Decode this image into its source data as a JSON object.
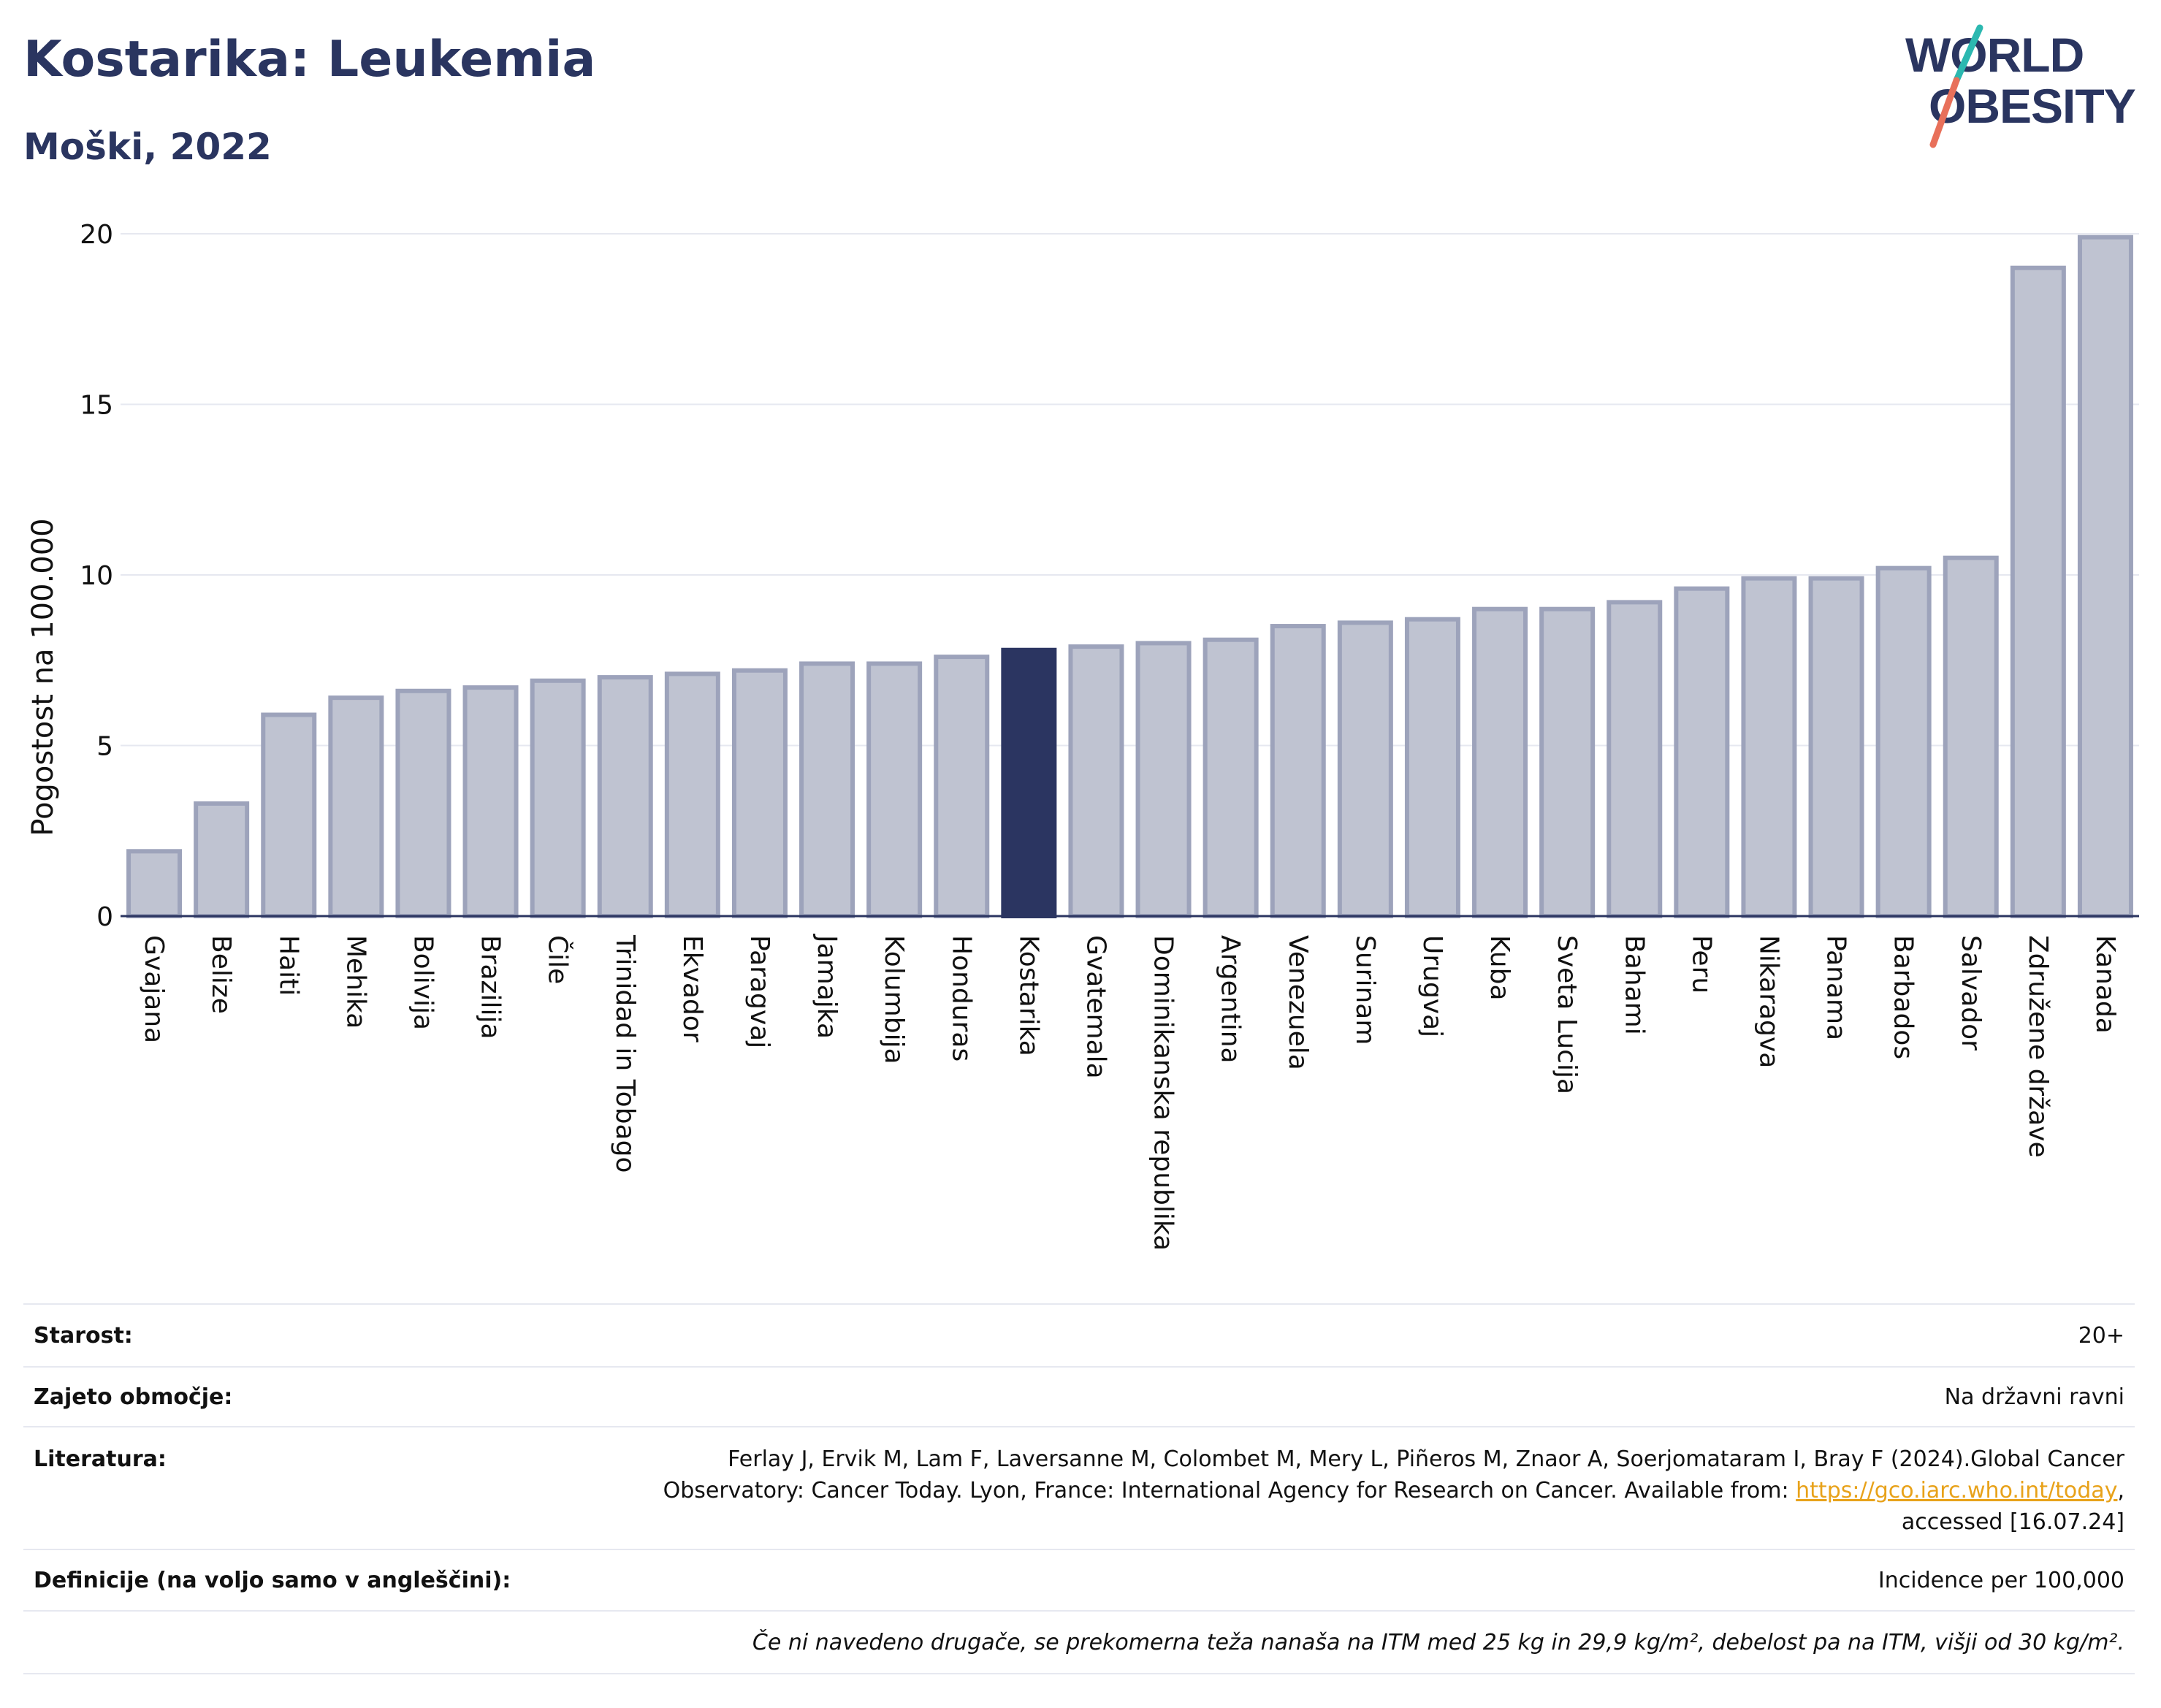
{
  "header": {
    "title": "Kostarika: Leukemia",
    "subtitle": "Moški, 2022"
  },
  "logo": {
    "line1": "WORLD",
    "line2": "OBESITY"
  },
  "chart_data": {
    "type": "bar",
    "title": "Kostarika: Leukemia",
    "subtitle": "Moški, 2022",
    "ylabel": "Pogostost na 100.000",
    "ylim": [
      0,
      20
    ],
    "yticks": [
      0,
      5,
      10,
      15,
      20
    ],
    "grid": true,
    "highlight": "Kostarika",
    "colors": {
      "bar": "#bfc3d1",
      "bar_edge": "#9da3bb",
      "highlight": "#2b3561",
      "axis": "#2b3561",
      "grid": "#e6e8f0"
    },
    "categories": [
      "Gvajana",
      "Belize",
      "Haiti",
      "Mehika",
      "Bolivija",
      "Brazilija",
      "Čile",
      "Trinidad in Tobago",
      "Ekvador",
      "Paragvaj",
      "Jamajka",
      "Kolumbija",
      "Honduras",
      "Kostarika",
      "Gvatemala",
      "Dominikanska republika",
      "Argentina",
      "Venezuela",
      "Surinam",
      "Urugvaj",
      "Kuba",
      "Sveta Lucija",
      "Bahami",
      "Peru",
      "Nikaragva",
      "Panama",
      "Barbados",
      "Salvador",
      "Združene države",
      "Kanada"
    ],
    "values": [
      1.9,
      3.3,
      5.9,
      6.4,
      6.6,
      6.7,
      6.9,
      7.0,
      7.1,
      7.2,
      7.4,
      7.4,
      7.6,
      7.8,
      7.9,
      8.0,
      8.1,
      8.5,
      8.6,
      8.7,
      9.0,
      9.0,
      9.2,
      9.6,
      9.9,
      9.9,
      10.2,
      10.5,
      19.0,
      19.9
    ]
  },
  "info": {
    "age_label": "Starost:",
    "age_value": "20+",
    "coverage_label": "Zajeto območje:",
    "coverage_value": "Na državni ravni",
    "literature_label": "Literatura:",
    "literature_text_1": "Ferlay J, Ervik M, Lam F, Laversanne M, Colombet M, Mery L, Piñeros M, Znaor A, Soerjomataram I, Bray F (2024).Global Cancer",
    "literature_text_2": "Observatory: Cancer Today. Lyon, France: International Agency for Research on Cancer. Available from: ",
    "literature_link": "https://gco.iarc.who.int/today",
    "literature_text_3": ",",
    "literature_text_4": "accessed [16.07.24]",
    "definitions_label": "Definicije (na voljo samo v angleščini):",
    "definitions_value": "Incidence per 100,000",
    "note": "Če ni navedeno drugače, se prekomerna teža nanaša na ITM med 25 kg in 29,9 kg/m², debelost pa na ITM, višji od 30 kg/m²."
  }
}
